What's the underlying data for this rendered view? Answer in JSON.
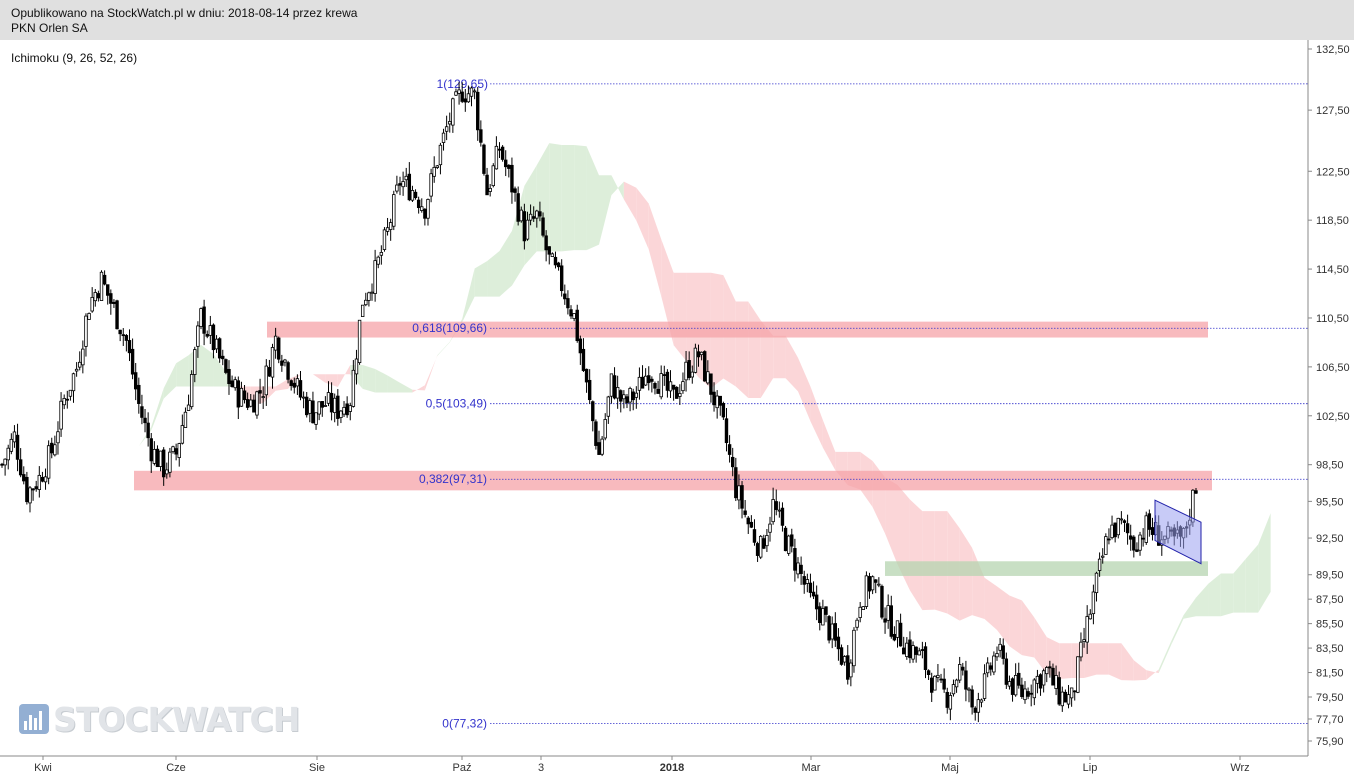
{
  "header": {
    "line1": "Opublikowano na StockWatch.pl w dniu: 2018-08-14 przez krewa",
    "line2": "PKN Orlen SA"
  },
  "indicator_label": "Ichimoku (9, 26, 52, 26)",
  "watermark": "STOCKWATCH",
  "colors": {
    "candle": "#000000",
    "fib_line": "#3333cc",
    "resistance_zone": "#f5a3a8",
    "support_zone": "#b5d4b0",
    "cloud_bullish": "#d9ecd6",
    "cloud_bearish": "#fbd2d4",
    "channel_fill": "#9aa0f0",
    "channel_stroke": "#2222aa"
  },
  "chart_data": {
    "type": "candlestick",
    "title": "PKN Orlen SA",
    "y_ticks": [
      "132,50",
      "127,50",
      "122,50",
      "118,50",
      "114,50",
      "110,50",
      "106,50",
      "102,50",
      "98,50",
      "95,50",
      "92,50",
      "89,50",
      "87,50",
      "85,50",
      "83,50",
      "81,50",
      "79,50",
      "77,70",
      "75,90"
    ],
    "ylim": [
      75.0,
      133.0
    ],
    "x_labels": [
      "Kwi",
      "Cze",
      "Sie",
      "Paź",
      "3",
      "2018",
      "Mar",
      "Maj",
      "Lip",
      "Wrz"
    ],
    "fibonacci": [
      {
        "label": "1(129,65)",
        "value": 129.65
      },
      {
        "label": "0,618(109,66)",
        "value": 109.66
      },
      {
        "label": "0,5(103,49)",
        "value": 103.49
      },
      {
        "label": "0,382(97,31)",
        "value": 97.31
      },
      {
        "label": "0(77,32)",
        "value": 77.32
      }
    ],
    "zones": [
      {
        "kind": "resistance",
        "low": 108.9,
        "high": 110.2
      },
      {
        "kind": "resistance",
        "low": 96.4,
        "high": 98.0
      },
      {
        "kind": "support",
        "low": 89.4,
        "high": 90.6
      }
    ],
    "series_close": [
      98.5,
      100.8,
      96.2,
      97.4,
      99.6,
      103.8,
      106.4,
      111.6,
      113.6,
      111.2,
      108.6,
      103.4,
      99.8,
      98.2,
      99.4,
      104.2,
      110.6,
      108.4,
      105.8,
      104.2,
      103.6,
      104.8,
      108.8,
      106.4,
      104.1,
      102.8,
      103.5,
      103.0,
      103.9,
      112.0,
      114.2,
      117.5,
      121.7,
      121.0,
      119.6,
      123.5,
      126.8,
      129.1,
      128.7,
      120.8,
      124.4,
      121.3,
      117.6,
      118.8,
      115.2,
      113.2,
      110.6,
      104.8,
      99.3,
      105.2,
      103.4,
      104.4,
      106.3,
      105.1,
      103.9,
      106.2,
      107.5,
      104.7,
      101.5,
      96.6,
      93.7,
      91.6,
      95.2,
      92.4,
      90.1,
      87.4,
      86.2,
      83.8,
      81.9,
      87.6,
      89.1,
      86.3,
      84.7,
      83.4,
      82.6,
      80.4,
      79.6,
      81.8,
      78.7,
      80.5,
      83.4,
      80.7,
      79.8,
      80.8,
      81.6,
      79.7,
      79.3,
      84.2,
      88.8,
      93.1,
      93.5,
      92.1,
      93.4,
      92.8,
      92.2,
      92.5,
      96.9
    ]
  }
}
